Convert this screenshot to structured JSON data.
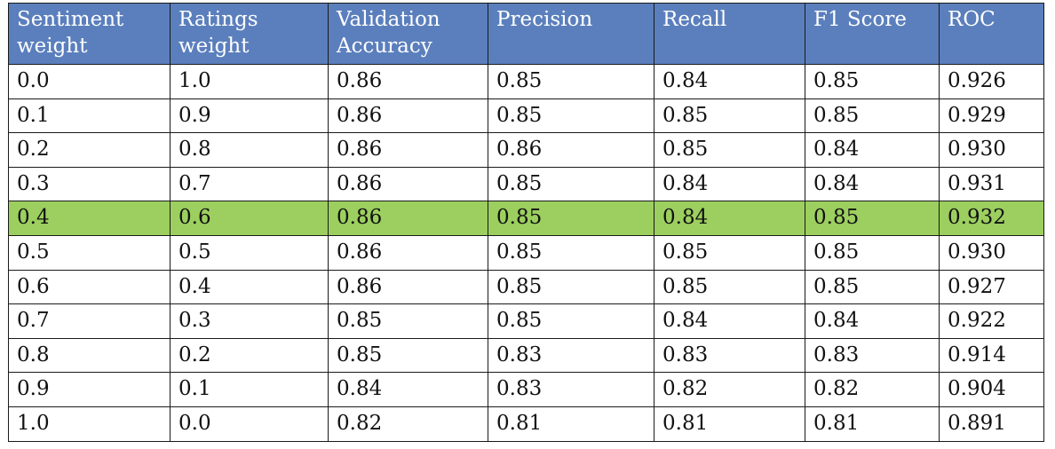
{
  "table": {
    "headers": [
      "Sentiment weight",
      "Ratings weight",
      "Validation Accuracy",
      "Precision",
      "Recall",
      "F1 Score",
      "ROC"
    ],
    "rows": [
      [
        "0.0",
        "1.0",
        "0.86",
        "0.85",
        "0.84",
        "0.85",
        "0.926"
      ],
      [
        "0.1",
        "0.9",
        "0.86",
        "0.85",
        "0.85",
        "0.85",
        "0.929"
      ],
      [
        "0.2",
        "0.8",
        "0.86",
        "0.86",
        "0.85",
        "0.84",
        "0.930"
      ],
      [
        "0.3",
        "0.7",
        "0.86",
        "0.85",
        "0.84",
        "0.84",
        "0.931"
      ],
      [
        "0.4",
        "0.6",
        "0.86",
        "0.85",
        "0.84",
        "0.85",
        "0.932"
      ],
      [
        "0.5",
        "0.5",
        "0.86",
        "0.85",
        "0.85",
        "0.85",
        "0.930"
      ],
      [
        "0.6",
        "0.4",
        "0.86",
        "0.85",
        "0.85",
        "0.85",
        "0.927"
      ],
      [
        "0.7",
        "0.3",
        "0.85",
        "0.85",
        "0.84",
        "0.84",
        "0.922"
      ],
      [
        "0.8",
        "0.2",
        "0.85",
        "0.83",
        "0.83",
        "0.83",
        "0.914"
      ],
      [
        "0.9",
        "0.1",
        "0.84",
        "0.83",
        "0.82",
        "0.82",
        "0.904"
      ],
      [
        "1.0",
        "0.0",
        "0.82",
        "0.81",
        "0.81",
        "0.81",
        "0.891"
      ]
    ],
    "highlighted_row": 4,
    "colors": {
      "header_bg": "#5b7fbd",
      "header_text": "#ffffff",
      "highlight_bg": "#9ccf5f"
    }
  }
}
